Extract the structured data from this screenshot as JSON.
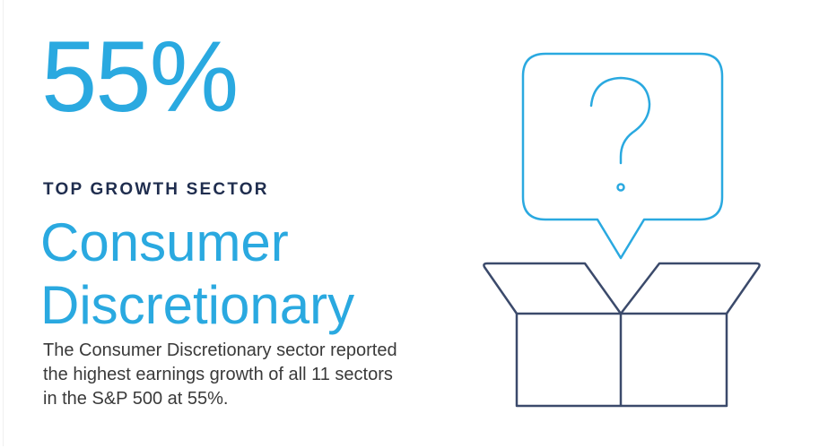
{
  "stat": {
    "value_label": "55%"
  },
  "kicker": "TOP GROWTH SECTOR",
  "heading": "Consumer Discretionary",
  "description": "The Consumer Discretionary sector reported the highest earnings growth of all 11 sectors in the S&P 500 at 55%."
}
